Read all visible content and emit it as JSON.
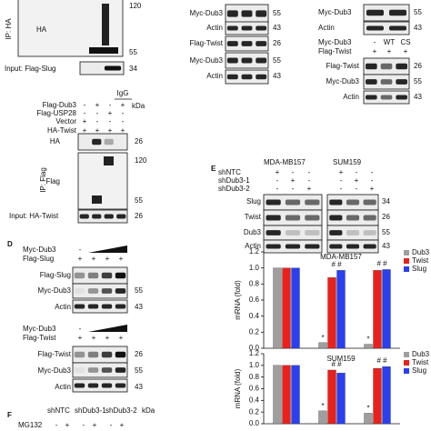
{
  "panel_a": {
    "ip": "IP: HA",
    "blot": "HA",
    "kda": [
      "120",
      "55",
      "34"
    ],
    "input": "Input: Flag-Slug"
  },
  "panel_b": {
    "rows": [
      "Myc-Dub3",
      "Actin",
      "Flag-Twist",
      "Myc-Dub3",
      "Actin"
    ],
    "kda": [
      "55",
      "43",
      "26",
      "55",
      "43"
    ]
  },
  "panel_b2": {
    "rows": [
      "Myc-Dub3",
      "Actin"
    ],
    "kda": [
      "55",
      "43"
    ],
    "treatments": [
      {
        "label": "Myc-Dub3",
        "lanes": [
          "-",
          "WT",
          "CS"
        ]
      },
      {
        "label": "Flag-Twist",
        "lanes": [
          "+",
          "+",
          "+"
        ]
      }
    ],
    "blots": [
      "Flag-Twist",
      "Myc-Dub3",
      "Actin"
    ],
    "blot_kda": [
      "26",
      "55",
      "43"
    ]
  },
  "panel_c": {
    "igg": "IgG",
    "kda_unit": "kDa",
    "treatments": [
      {
        "label": "Flag-Dub3",
        "lanes": [
          "-",
          "+",
          "-",
          "+"
        ]
      },
      {
        "label": "Flag-USP28",
        "lanes": [
          "-",
          "-",
          "+",
          "-"
        ]
      },
      {
        "label": "Vector",
        "lanes": [
          "+",
          "-",
          "-",
          "-"
        ]
      },
      {
        "label": "HA-Twist",
        "lanes": [
          "+",
          "+",
          "+",
          "+"
        ]
      }
    ],
    "blots": [
      "HA",
      "Flag"
    ],
    "kda": [
      "26",
      "120",
      "55"
    ],
    "ip": "IP: Flag",
    "input": "Input: HA-Twist",
    "input_kda": "26"
  },
  "panel_d": {
    "letter": "D",
    "sets": [
      {
        "treatments": [
          {
            "label": "Myc-Dub3",
            "lanes": [
              "-"
            ]
          },
          {
            "label": "Flag-Slug",
            "lanes": [
              "+",
              "+",
              "+",
              "+"
            ]
          }
        ],
        "blots": [
          "Flag-Slug",
          "Myc-Dub3",
          "Actin"
        ],
        "kda": [
          "55",
          "43"
        ]
      },
      {
        "treatments": [
          {
            "label": "Myc-Dub3",
            "lanes": [
              "-"
            ]
          },
          {
            "label": "Flag-Twist",
            "lanes": [
              "+",
              "+",
              "+",
              "+"
            ]
          }
        ],
        "blots": [
          "Flag-Twist",
          "Myc-Dub3",
          "Actin"
        ],
        "kda": [
          "26",
          "55",
          "43"
        ]
      }
    ]
  },
  "panel_e": {
    "letter": "E",
    "cells": [
      "MDA-MB157",
      "SUM159"
    ],
    "treatments": [
      {
        "label": "shNTC",
        "lanes": [
          "+",
          "-",
          "-",
          "+",
          "-",
          "-"
        ]
      },
      {
        "label": "shDub3-1",
        "lanes": [
          "-",
          "+",
          "-",
          "-",
          "+",
          "-"
        ]
      },
      {
        "label": "shDub3-2",
        "lanes": [
          "-",
          "-",
          "+",
          "-",
          "-",
          "+"
        ]
      }
    ],
    "blots": [
      "Slug",
      "Twist",
      "Dub3",
      "Actin"
    ],
    "kda": [
      "34",
      "26",
      "55",
      "43"
    ]
  },
  "panel_f": {
    "letter": "F",
    "groups": [
      "shNTC",
      "shDub3-1",
      "shDub3-2"
    ],
    "kda_unit": "kDa",
    "treatments": [
      {
        "label": "MG132",
        "lanes": [
          "-",
          "+",
          "-",
          "+",
          "-",
          "+"
        ]
      }
    ]
  },
  "chart_data": [
    {
      "type": "bar",
      "title": "MDA-MB157",
      "y_label": "mRNA (fold)",
      "categories": [
        null,
        null,
        null
      ],
      "series": [
        {
          "name": "Dub3",
          "color": "#9e9e9e",
          "values": [
            1.0,
            0.07,
            0.05
          ]
        },
        {
          "name": "Twist",
          "color": "#e8211d",
          "values": [
            1.0,
            0.88,
            0.97
          ]
        },
        {
          "name": "Slug",
          "color": "#2a3ff0",
          "values": [
            1.0,
            0.97,
            0.98
          ]
        }
      ],
      "ylim": [
        0,
        1.2
      ],
      "yticks": [
        {
          "value": 0,
          "label": "0.0"
        },
        0.2,
        0.4,
        0.6,
        0.8,
        {
          "value": 1,
          "label": "1.0"
        },
        1.2
      ],
      "annotations": [
        "*",
        "# #"
      ],
      "legend": "upper right"
    },
    {
      "type": "bar",
      "title": "SUM159",
      "y_label": "mRNA (fold)",
      "categories": [
        null,
        null,
        null
      ],
      "series": [
        {
          "name": "Dub3",
          "color": "#9e9e9e",
          "values": [
            1.0,
            0.22,
            0.18
          ]
        },
        {
          "name": "Twist",
          "color": "#e8211d",
          "values": [
            1.0,
            0.92,
            0.95
          ]
        },
        {
          "name": "Slug",
          "color": "#2a3ff0",
          "values": [
            1.0,
            0.87,
            0.98
          ]
        }
      ],
      "ylim": [
        0,
        1.2
      ],
      "yticks": [
        {
          "value": 0,
          "label": "0.0"
        },
        0.2,
        0.4,
        0.6,
        0.8,
        {
          "value": 1,
          "label": "1.0"
        },
        1.2
      ],
      "annotations": [
        "*",
        "# #"
      ],
      "legend": "upper right"
    }
  ]
}
